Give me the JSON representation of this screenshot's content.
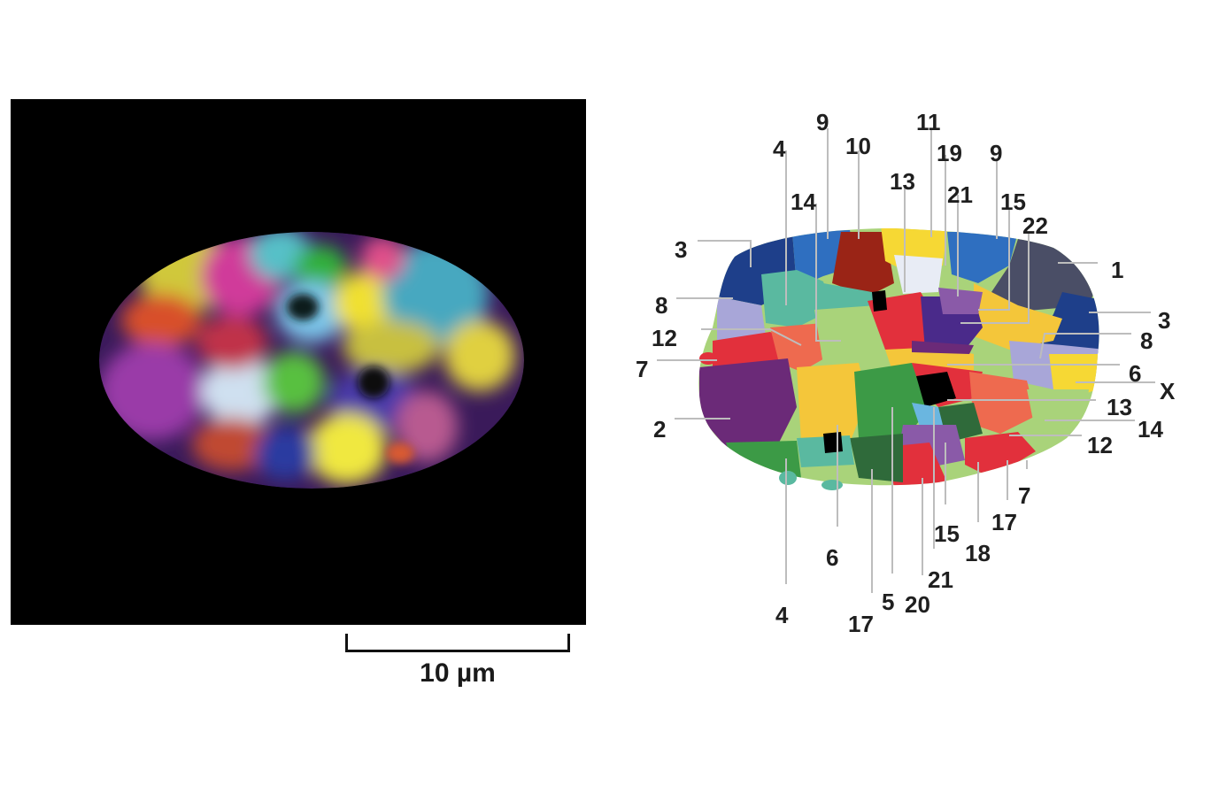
{
  "scale_bar": {
    "label": "10 µm"
  },
  "map_labels": [
    "9",
    "4",
    "10",
    "11",
    "19",
    "13",
    "9",
    "21",
    "14",
    "15",
    "22",
    "3",
    "1",
    "8",
    "3",
    "12",
    "8",
    "7",
    "6",
    "X",
    "13",
    "2",
    "14",
    "12",
    "7",
    "17",
    "15",
    "18",
    "6",
    "21",
    "4",
    "5",
    "20",
    "17"
  ],
  "colors": {
    "navy": "#1e3f8a",
    "blue": "#2f6fc0",
    "darkred": "#9a2416",
    "yellow": "#f6d834",
    "gold": "#f4c63a",
    "red": "#e2303c",
    "salmon": "#ee6a4f",
    "teal": "#5ab9a0",
    "lavender": "#a8a6d8",
    "lightgreen": "#a9d37a",
    "purple": "#6b2a78",
    "indigo": "#4a2a8a",
    "violet": "#8a5aa8",
    "green": "#3c9a46",
    "darkgreen": "#2f6a3a",
    "slate": "#4a4e66",
    "skyblue": "#6ab6e0",
    "pink": "#d84a78",
    "black": "#000000"
  }
}
